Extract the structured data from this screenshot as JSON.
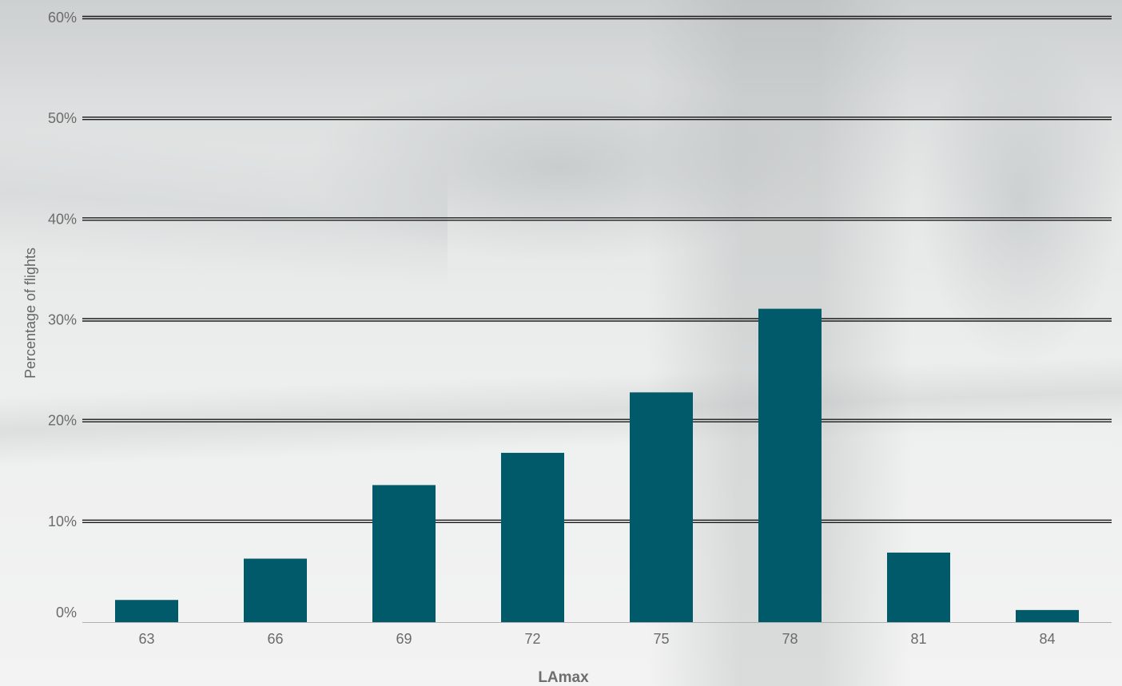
{
  "chart_data": {
    "type": "bar",
    "categories": [
      "63",
      "66",
      "69",
      "72",
      "75",
      "78",
      "81",
      "84"
    ],
    "values": [
      2.2,
      6.3,
      13.6,
      16.8,
      22.8,
      31.1,
      6.9,
      1.2
    ],
    "y_ticks": [
      "0%",
      "10%",
      "20%",
      "30%",
      "40%",
      "50%",
      "60%"
    ],
    "ylim": [
      0,
      60
    ],
    "xlabel": "LAmax",
    "ylabel": "Percentage of flights",
    "grid": true,
    "legend": "none",
    "bar_color": "#005a69"
  }
}
